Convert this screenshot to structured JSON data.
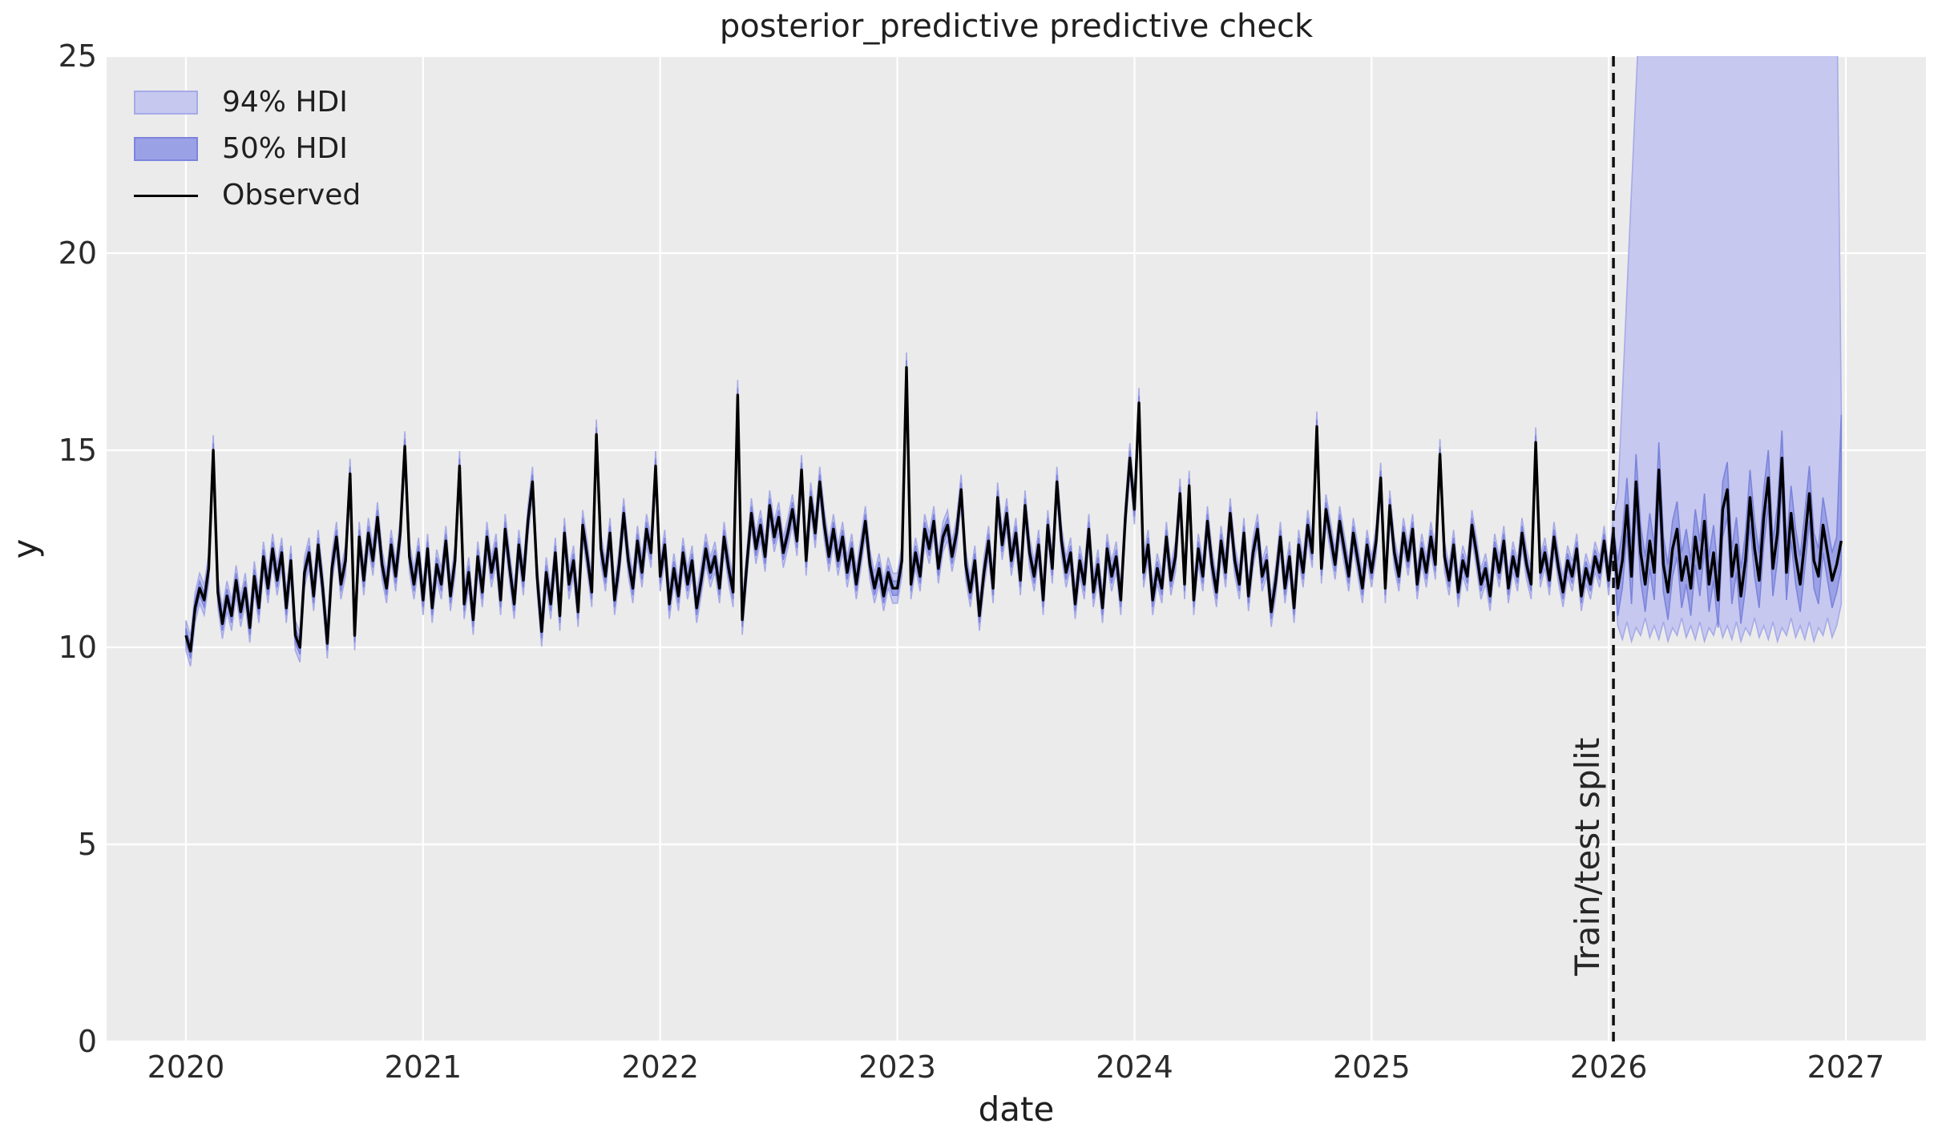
{
  "chart_data": {
    "type": "line",
    "title": "posterior_predictive predictive check",
    "xlabel": "date",
    "ylabel": "y",
    "xlim": [
      2019.67,
      2027.34
    ],
    "ylim": [
      0,
      25
    ],
    "xticks": [
      2020,
      2021,
      2022,
      2023,
      2024,
      2025,
      2026,
      2027
    ],
    "yticks": [
      0,
      5,
      10,
      15,
      20,
      25
    ],
    "grid": true,
    "legend_position": "upper left",
    "legend": [
      {
        "label": "94% HDI",
        "fill": "#c6c8ef",
        "edge": "#a6aae7"
      },
      {
        "label": "50% HDI",
        "fill": "#9ba1e5",
        "edge": "#7c84dc"
      },
      {
        "label": "Observed",
        "color": "#000000"
      }
    ],
    "split": {
      "x": 2026.02,
      "label": "Train/test split"
    },
    "x_start": 2020.0,
    "x_step_years": 0.0192308,
    "observed": [
      10.3,
      9.9,
      11.0,
      11.5,
      11.2,
      12.0,
      15.0,
      11.4,
      10.6,
      11.3,
      10.8,
      11.7,
      10.9,
      11.5,
      10.5,
      11.8,
      11.0,
      12.3,
      11.5,
      12.5,
      11.7,
      12.4,
      11.0,
      12.2,
      10.3,
      10.0,
      11.9,
      12.4,
      11.3,
      12.6,
      11.5,
      10.1,
      12.0,
      12.8,
      11.6,
      12.2,
      14.4,
      10.3,
      12.8,
      11.7,
      12.9,
      12.2,
      13.3,
      12.1,
      11.5,
      12.6,
      11.8,
      12.9,
      15.1,
      12.3,
      11.6,
      12.4,
      11.2,
      12.5,
      11.0,
      12.1,
      11.6,
      12.7,
      11.3,
      12.2,
      14.6,
      11.1,
      11.9,
      10.7,
      12.3,
      11.4,
      12.8,
      11.9,
      12.5,
      11.2,
      13.0,
      12.0,
      11.1,
      12.6,
      11.7,
      13.2,
      14.2,
      11.8,
      10.4,
      11.9,
      11.1,
      12.4,
      10.8,
      12.9,
      11.6,
      12.2,
      10.9,
      13.1,
      12.3,
      11.4,
      15.4,
      12.5,
      11.8,
      12.9,
      11.2,
      12.1,
      13.4,
      12.2,
      11.5,
      12.7,
      11.9,
      13.0,
      12.4,
      14.6,
      11.8,
      12.6,
      11.1,
      12.0,
      11.3,
      12.4,
      11.6,
      12.2,
      11.0,
      11.7,
      12.5,
      11.9,
      12.3,
      11.5,
      12.8,
      12.0,
      11.4,
      16.4,
      10.7,
      12.1,
      13.4,
      12.5,
      13.1,
      12.3,
      13.6,
      12.8,
      13.3,
      12.4,
      12.9,
      13.5,
      12.7,
      14.5,
      12.2,
      13.8,
      12.9,
      14.2,
      13.1,
      12.3,
      13.0,
      12.2,
      12.8,
      11.9,
      12.5,
      11.6,
      12.4,
      13.2,
      12.1,
      11.5,
      12.0,
      11.3,
      11.9,
      11.5,
      11.5,
      12.2,
      17.1,
      11.6,
      12.4,
      11.8,
      13.0,
      12.5,
      13.2,
      12.0,
      12.8,
      13.1,
      12.3,
      12.9,
      14.0,
      12.1,
      11.4,
      12.2,
      10.8,
      11.9,
      12.7,
      11.5,
      13.8,
      12.6,
      13.4,
      12.2,
      12.9,
      11.7,
      13.6,
      12.4,
      11.8,
      12.6,
      11.2,
      13.1,
      12.0,
      14.2,
      12.7,
      11.9,
      12.4,
      11.1,
      12.2,
      11.6,
      13.0,
      11.4,
      12.1,
      11.0,
      12.5,
      11.8,
      12.3,
      11.2,
      13.3,
      14.8,
      13.5,
      16.2,
      11.9,
      12.6,
      11.2,
      12.0,
      11.5,
      12.8,
      11.7,
      12.3,
      13.9,
      11.6,
      14.1,
      11.2,
      12.5,
      11.8,
      13.2,
      12.1,
      11.4,
      12.7,
      11.9,
      13.4,
      12.2,
      11.6,
      12.9,
      11.3,
      12.4,
      13.0,
      11.8,
      12.2,
      10.9,
      11.7,
      12.8,
      11.5,
      12.3,
      11.0,
      12.6,
      11.9,
      13.1,
      12.4,
      15.6,
      12.0,
      13.5,
      12.8,
      12.1,
      13.2,
      12.5,
      11.8,
      12.9,
      12.2,
      11.5,
      12.6,
      11.9,
      12.7,
      14.3,
      11.5,
      13.6,
      12.4,
      11.8,
      12.9,
      12.2,
      13.0,
      11.6,
      12.5,
      11.9,
      12.8,
      12.1,
      14.9,
      12.3,
      11.7,
      12.6,
      11.4,
      12.2,
      11.8,
      13.1,
      12.4,
      11.6,
      12.0,
      11.3,
      12.5,
      11.9,
      12.7,
      11.5,
      12.3,
      11.8,
      12.9,
      12.1,
      11.6,
      15.2,
      11.9,
      12.4,
      11.7,
      12.8,
      12.0,
      11.4,
      12.2,
      11.8,
      12.5,
      11.3,
      12.0,
      11.6,
      12.3,
      11.9,
      12.7,
      11.7,
      12.9,
      11.5,
      12.2,
      13.6,
      11.8,
      14.2,
      12.4,
      11.6,
      12.7,
      11.9,
      14.5,
      12.1,
      11.4,
      12.5,
      13.0,
      11.7,
      12.3,
      11.5,
      12.8,
      12.0,
      13.2,
      11.6,
      12.4,
      11.2,
      13.5,
      14.0,
      11.8,
      12.6,
      11.3,
      12.2,
      13.8,
      12.5,
      11.7,
      13.3,
      14.3,
      12.0,
      12.9,
      14.8,
      11.9,
      13.4,
      12.3,
      11.6,
      12.7,
      13.9,
      12.2,
      11.8,
      13.1,
      12.4,
      11.7,
      12.1,
      12.7
    ],
    "bands": {
      "train": {
        "hdi94_halfwidth": 0.38,
        "hdi50_halfwidth": 0.18
      },
      "test": {
        "hdi94_upper_start": 13.8,
        "hdi94_upper_step": 2.6,
        "hdi94_upper_cap": 27.0,
        "hdi94_upper_end": 16.0,
        "hdi94_lower_base": 10.45,
        "hdi94_lower_jitter": [
          0.1,
          -0.25,
          0.2,
          -0.3,
          0.05,
          -0.15,
          0.3,
          -0.2
        ],
        "hdi94_lower_end": 11.1,
        "hdi50_halfwidth": 0.7,
        "hdi50_upper_end": 15.9
      }
    },
    "colors": {
      "axes_background": "#ebebeb",
      "figure_background": "#ffffff",
      "grid": "#ffffff",
      "hdi94_fill": "#c6c8ef",
      "hdi94_edge": "#a6aae7",
      "hdi50_fill": "#9ba1e5",
      "hdi50_edge": "#7c84dc",
      "observed_line": "#000000",
      "split_line": "#0d0d0d",
      "tick_text": "#2b2b2b"
    }
  }
}
